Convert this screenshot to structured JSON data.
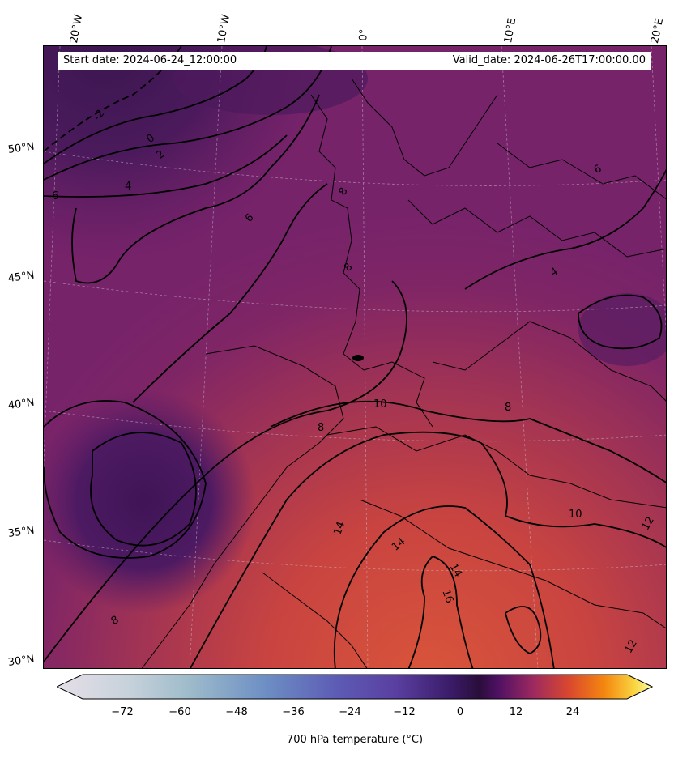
{
  "header": {
    "start_date": "Start date: 2024-06-24_12:00:00",
    "valid_date": "Valid_date: 2024-06-26T17:00:00.00"
  },
  "lon_labels": [
    "20°W",
    "10°W",
    "0°",
    "10°E",
    "20°E"
  ],
  "lat_labels": [
    "50°N",
    "45°N",
    "40°N",
    "35°N",
    "30°N"
  ],
  "contour_labels": [
    "-2",
    "0",
    "2",
    "4",
    "6",
    "8",
    "10",
    "12",
    "14",
    "16"
  ],
  "colorbar": {
    "ticks": [
      "−72",
      "−60",
      "−48",
      "−36",
      "−24",
      "−12",
      "0",
      "12",
      "24"
    ],
    "label": "700 hPa temperature (°C)",
    "colormap": "inferno-like warm (dark purple to yellow) with cool extension",
    "range": [
      -84,
      36
    ]
  },
  "colors": {
    "cold_core": "#3d1552",
    "mid": "#7a2468",
    "warm": "#c2433e",
    "hot": "#d85338"
  }
}
